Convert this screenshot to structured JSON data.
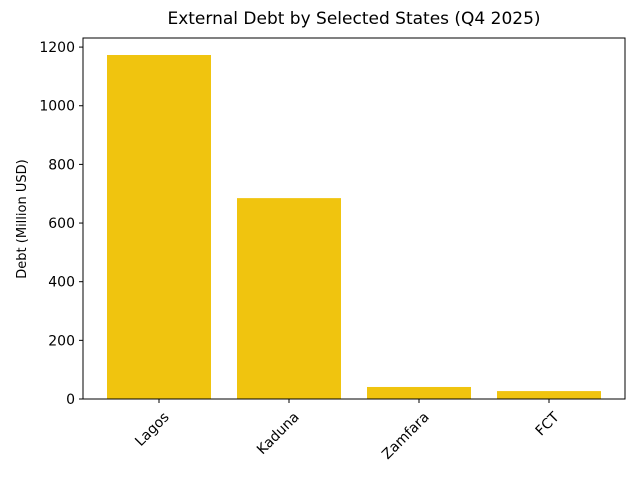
{
  "chart_data": {
    "type": "bar",
    "title": "External Debt by Selected States (Q4 2025)",
    "y_label": "Debt (Million USD)",
    "categories": [
      "Lagos",
      "Kaduna",
      "Zamfara",
      "FCT"
    ],
    "values": [
      1173,
      685,
      41,
      27
    ],
    "color": "#f0c40f",
    "ylim": [
      0,
      1231
    ],
    "yticks": [
      0,
      200,
      400,
      600,
      800,
      1000,
      1200
    ],
    "grid": false
  }
}
